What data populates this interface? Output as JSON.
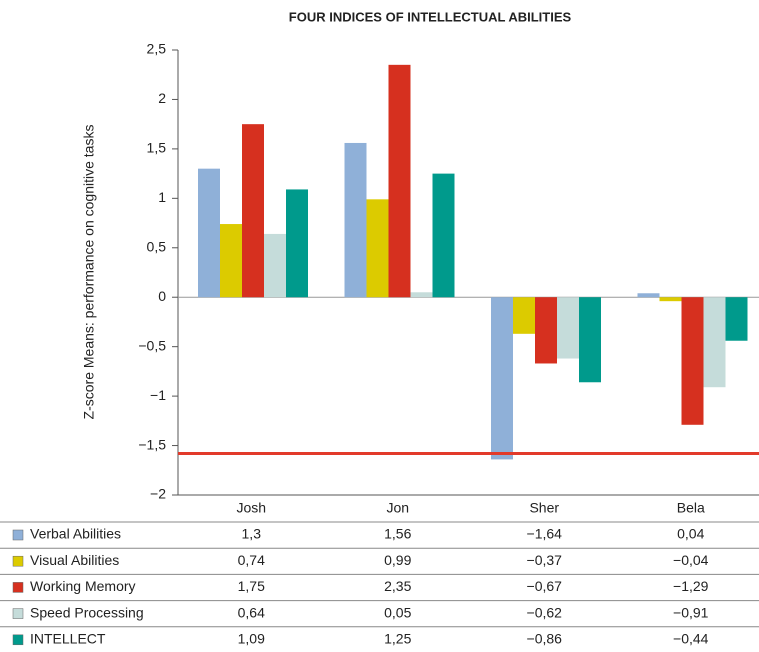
{
  "chart_data": {
    "type": "bar",
    "title": "FOUR INDICES OF INTELLECTUAL ABILITIES",
    "y_label": "Z-score Means: performance on cognitive tasks",
    "categories": [
      "Josh",
      "Jon",
      "Sher",
      "Bela"
    ],
    "series": [
      {
        "name": "Verbal Abilities",
        "color": "#8fb0d8",
        "values": [
          1.3,
          1.56,
          -1.64,
          0.04
        ],
        "value_labels": [
          "1,3",
          "1,56",
          "−1,64",
          "0,04"
        ]
      },
      {
        "name": "Visual Abilities",
        "color": "#dccb00",
        "values": [
          0.74,
          0.99,
          -0.37,
          -0.04
        ],
        "value_labels": [
          "0,74",
          "0,99",
          "−0,37",
          "−0,04"
        ]
      },
      {
        "name": "Working Memory",
        "color": "#d6301f",
        "values": [
          1.75,
          2.35,
          -0.67,
          -1.29
        ],
        "value_labels": [
          "1,75",
          "2,35",
          "−0,67",
          "−1,29"
        ]
      },
      {
        "name": "Speed Processing",
        "color": "#c5dcda",
        "values": [
          0.64,
          0.05,
          -0.62,
          -0.91
        ],
        "value_labels": [
          "0,64",
          "0,05",
          "−0,62",
          "−0,91"
        ]
      },
      {
        "name": "INTELLECT",
        "color": "#009a8c",
        "values": [
          1.09,
          1.25,
          -0.86,
          -0.44
        ],
        "value_labels": [
          "1,09",
          "1,25",
          "−0,86",
          "−0,44"
        ]
      }
    ],
    "ylim": [
      -2,
      2.5
    ],
    "yticks": [
      {
        "value": 2.5,
        "label": "2,5"
      },
      2,
      {
        "value": 1.5,
        "label": "1,5"
      },
      1,
      {
        "value": 0.5,
        "label": "0,5"
      },
      0,
      {
        "value": -0.5,
        "label": "−0,5"
      },
      {
        "value": -1,
        "label": "−1"
      },
      {
        "value": -1.5,
        "label": "−1,5"
      },
      {
        "value": -2,
        "label": "−2"
      }
    ],
    "reference_line": {
      "value": -1.58,
      "color": "#e23a2a"
    }
  }
}
